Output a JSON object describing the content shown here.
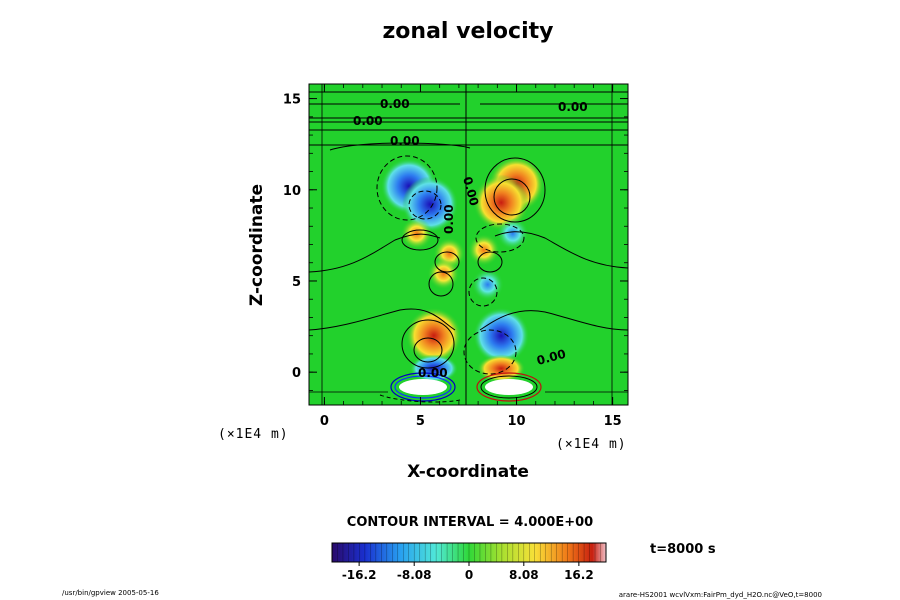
{
  "chart_data": {
    "type": "heatmap",
    "title": "zonal velocity",
    "xlabel": "X-coordinate",
    "ylabel": "Z-coordinate",
    "x_unit": "(×1E4 m)",
    "z_unit": "(×1E4 m)",
    "xlim": [
      -0.8,
      15.8
    ],
    "ylim": [
      -1.8,
      15.8
    ],
    "x_ticks": [
      "0",
      "5",
      "10",
      "15"
    ],
    "y_ticks": [
      "0",
      "5",
      "10",
      "15"
    ],
    "contour_interval_text": "CONTOUR INTERVAL = 4.000E+00",
    "contour_labels": [
      "0.00",
      "0.00",
      "0.00",
      "0.00",
      "0.00",
      "0.00",
      "0.00",
      "0.00"
    ],
    "colorbar": {
      "range": [
        -20.2,
        20.2
      ],
      "tick_labels": [
        "-16.2",
        "-8.08",
        "0",
        "8.08",
        "16.2"
      ],
      "tick_values": [
        -16.2,
        -8.08,
        0,
        8.08,
        16.2
      ]
    },
    "extrema": [
      {
        "x": 4.4,
        "z": 10.2,
        "value": -19
      },
      {
        "x": 5.5,
        "z": 9.2,
        "value": -16
      },
      {
        "x": 10.0,
        "z": 10.3,
        "value": 18
      },
      {
        "x": 9.2,
        "z": 9.3,
        "value": 14
      },
      {
        "x": 4.8,
        "z": 7.6,
        "value": 8
      },
      {
        "x": 9.8,
        "z": 7.6,
        "value": -6
      },
      {
        "x": 6.5,
        "z": 6.5,
        "value": 6
      },
      {
        "x": 8.3,
        "z": 6.7,
        "value": 7
      },
      {
        "x": 6.2,
        "z": 5.4,
        "value": 8
      },
      {
        "x": 8.5,
        "z": 4.8,
        "value": -7
      },
      {
        "x": 5.7,
        "z": 2.0,
        "value": 14
      },
      {
        "x": 9.2,
        "z": 2.0,
        "value": -12
      },
      {
        "x": 5.7,
        "z": 0.2,
        "value": -32
      },
      {
        "x": 9.2,
        "z": 0.2,
        "value": 32
      }
    ],
    "time_label": "t=8000 s"
  },
  "footer": {
    "left": "/usr/bin/gpview 2005-05-16",
    "right": "arare-HS2001 wcvlVxm:FairPm_dyd_H2O.nc@VeO,t=8000"
  },
  "colors": {
    "background": "#22d12c"
  }
}
